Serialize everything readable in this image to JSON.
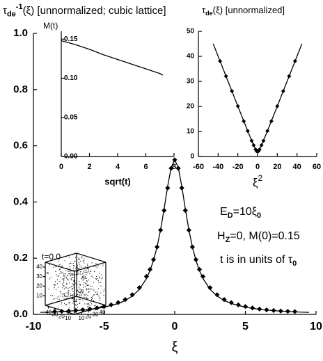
{
  "chart_data": [
    {
      "type": "line",
      "title": [
        {
          "text": "τ"
        },
        {
          "text": "de",
          "pos": "sub"
        },
        {
          "text": "-1",
          "pos": "sup"
        },
        {
          "text": "(ξ) [unnormalized; cubic lattice]"
        }
      ],
      "xlabel": "ξ",
      "xlim": [
        -10,
        10
      ],
      "ylim": [
        0,
        1
      ],
      "xticks": [
        -10,
        -5,
        0,
        5,
        10
      ],
      "yticks": [
        {
          "value": 0,
          "label": "0.0"
        },
        {
          "value": 0.2,
          "label": "0.2"
        },
        {
          "value": 0.4,
          "label": "0.4"
        },
        {
          "value": 0.6,
          "label": "0.6"
        },
        {
          "value": 0.8,
          "label": "0.8"
        },
        {
          "value": 1,
          "label": "1.0"
        }
      ],
      "series": [
        {
          "color": "#000000",
          "x": [
            -9.5,
            -9,
            -8,
            -7,
            -6,
            -5,
            -4,
            -3.5,
            -3,
            -2.5,
            -2,
            -1.75,
            -1.5,
            -1.25,
            -1,
            -0.75,
            -0.5,
            -0.25,
            0,
            0.25,
            0.5,
            0.75,
            1,
            1.25,
            1.5,
            1.75,
            2,
            2.5,
            3,
            3.5,
            4,
            5,
            6,
            7,
            8,
            9,
            9.5
          ],
          "values": [
            0.0073,
            0.0081,
            0.0102,
            0.0133,
            0.0179,
            0.0254,
            0.0387,
            0.0495,
            0.0652,
            0.0892,
            0.1277,
            0.1558,
            0.1923,
            0.2401,
            0.3012,
            0.3754,
            0.4558,
            0.523,
            0.55,
            0.523,
            0.4558,
            0.3754,
            0.3012,
            0.2401,
            0.1923,
            0.1558,
            0.1277,
            0.0892,
            0.0652,
            0.0495,
            0.0387,
            0.0254,
            0.0179,
            0.0133,
            0.0102,
            0.0081,
            0.0073
          ]
        },
        {
          "color": "#000000",
          "marker": "diamond",
          "x": [
            -8.5,
            -8,
            -7.5,
            -7,
            -6.5,
            -6,
            -5.5,
            -5,
            -4.5,
            -4,
            -3.5,
            -3,
            -2.5,
            -2,
            -1.75,
            -1.5,
            -1.25,
            -1,
            -0.75,
            -0.5,
            -0.25,
            0,
            0.25,
            0.5,
            0.75,
            1,
            1.25,
            1.5,
            1.75,
            2,
            2.5,
            3,
            3.5,
            4,
            4.5,
            5,
            5.5,
            6,
            6.5,
            7,
            7.5,
            8,
            8.5
          ],
          "values": [
            0.01,
            0.011,
            0.012,
            0.014,
            0.016,
            0.019,
            0.023,
            0.028,
            0.034,
            0.042,
            0.053,
            0.07,
            0.095,
            0.135,
            0.16,
            0.195,
            0.24,
            0.3,
            0.37,
            0.45,
            0.52,
            0.55,
            0.52,
            0.45,
            0.37,
            0.3,
            0.24,
            0.195,
            0.16,
            0.135,
            0.095,
            0.07,
            0.053,
            0.042,
            0.034,
            0.028,
            0.023,
            0.019,
            0.016,
            0.014,
            0.012,
            0.011,
            0.01
          ]
        }
      ],
      "annotations": [
        [
          {
            "text": "E"
          },
          {
            "text": "D",
            "pos": "sub"
          },
          {
            "text": "=10"
          },
          {
            "text": "ξ"
          },
          {
            "text": "0",
            "pos": "sub"
          }
        ],
        [
          {
            "text": "H"
          },
          {
            "text": "Z",
            "pos": "sub"
          },
          {
            "text": "=0, M(0)=0.15"
          }
        ],
        [
          {
            "text": "t is in units of "
          },
          {
            "text": "τ"
          },
          {
            "text": "0",
            "pos": "sub"
          }
        ]
      ]
    },
    {
      "type": "line",
      "title": [
        {
          "text": "M(t)"
        }
      ],
      "xlabel": "sqrt(t)",
      "xlim": [
        0,
        8
      ],
      "ylim": [
        0,
        0.16
      ],
      "xticks": [
        0,
        2,
        4,
        6,
        8
      ],
      "yticks": [
        {
          "value": 0,
          "label": "0.00"
        },
        {
          "value": 0.05,
          "label": "0.05"
        },
        {
          "value": 0.1,
          "label": "0.10"
        },
        {
          "value": 0.15,
          "label": "0.15"
        }
      ],
      "series": [
        {
          "color": "#000000",
          "x": [
            0,
            1,
            2,
            3,
            4,
            5,
            6,
            7,
            7.2
          ],
          "values": [
            0.148,
            0.143,
            0.137,
            0.13,
            0.124,
            0.118,
            0.112,
            0.106,
            0.104
          ]
        }
      ]
    },
    {
      "type": "line",
      "title": [
        {
          "text": "τ"
        },
        {
          "text": "de",
          "pos": "sub"
        },
        {
          "text": "(ξ) [unnormalized]"
        }
      ],
      "xlabel": [
        {
          "text": "ξ"
        },
        {
          "text": "2",
          "pos": "sup"
        }
      ],
      "xlim": [
        -60,
        60
      ],
      "ylim": [
        0,
        50
      ],
      "xticks": [
        -60,
        -40,
        -20,
        0,
        20,
        40,
        60
      ],
      "yticks": [
        0,
        10,
        20,
        30,
        40,
        50
      ],
      "series": [
        {
          "color": "#000000",
          "x": [
            -45,
            -30,
            -15,
            -8,
            -4,
            -2,
            0,
            2,
            4,
            8,
            15,
            30,
            45
          ],
          "values": [
            45.04,
            30.07,
            15.13,
            8.25,
            4.47,
            2.83,
            2,
            2.83,
            4.47,
            8.25,
            15.13,
            30.07,
            45.04
          ]
        },
        {
          "color": "#000000",
          "marker": "diamond",
          "x": [
            -38,
            -32,
            -26,
            -20,
            -14,
            -10,
            -6,
            -4,
            -2,
            -1,
            0,
            1,
            2,
            4,
            6,
            10,
            14,
            20,
            26,
            32,
            38
          ],
          "values": [
            38.1,
            32.1,
            26.1,
            20.1,
            14.1,
            10.2,
            6.3,
            4.5,
            2.8,
            2.2,
            2.0,
            2.2,
            2.8,
            4.5,
            6.3,
            10.2,
            14.1,
            20.1,
            26.1,
            32.1,
            38.1
          ]
        }
      ]
    },
    {
      "type": "scatter3d",
      "title": [
        {
          "text": "t=0.0"
        }
      ],
      "xlim": [
        0,
        45
      ],
      "ylim": [
        0,
        45
      ],
      "zlim": [
        0,
        45
      ],
      "xticks": [
        40,
        30,
        20,
        10
      ],
      "yticks": [
        10,
        20,
        30,
        40
      ],
      "zticks": [
        40,
        30,
        20,
        10
      ]
    }
  ]
}
